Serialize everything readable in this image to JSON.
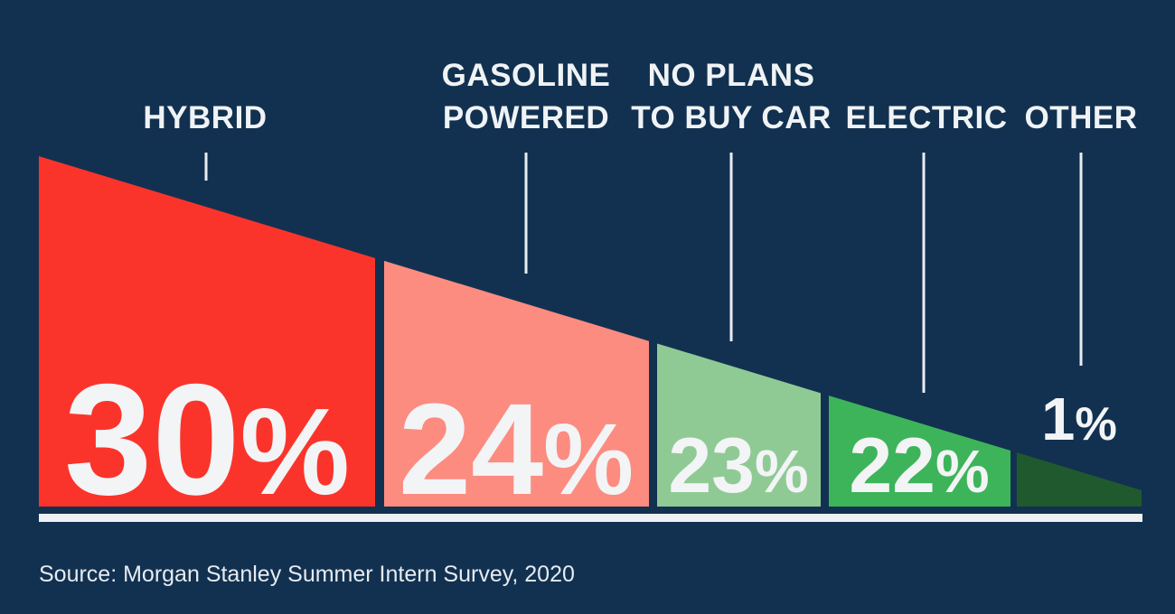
{
  "colors": {
    "background": "#123150",
    "label_text": "#f0f3f5",
    "value_text": "#f3f4f6",
    "baseline_bar": "#eef1f4",
    "leader_line": "#e9edf0",
    "source_text": "#e6ebf1"
  },
  "chart_data": {
    "type": "bar",
    "subtype": "descending-wedge-funnel",
    "unit": "%",
    "categories": [
      "HYBRID",
      "GASOLINE POWERED",
      "NO PLANS TO BUY CAR",
      "ELECTRIC",
      "OTHER"
    ],
    "values": [
      30,
      24,
      23,
      22,
      1
    ],
    "grid": false,
    "legend_position": "none",
    "source": "Source: Morgan Stanley Summer Intern Survey, 2020",
    "segments": [
      {
        "category": "HYBRID",
        "value": 30,
        "value_label": "30",
        "unit": "%",
        "color": "#fb342b",
        "label_line1": "",
        "label_line2": "HYBRID"
      },
      {
        "category": "GASOLINE POWERED",
        "value": 24,
        "value_label": "24",
        "unit": "%",
        "color": "#fc8c80",
        "label_line1": "GASOLINE",
        "label_line2": "POWERED"
      },
      {
        "category": "NO PLANS TO BUY CAR",
        "value": 23,
        "value_label": "23",
        "unit": "%",
        "color": "#8fca95",
        "label_line1": "NO PLANS",
        "label_line2": "TO BUY CAR"
      },
      {
        "category": "ELECTRIC",
        "value": 22,
        "value_label": "22",
        "unit": "%",
        "color": "#3db45a",
        "label_line1": "",
        "label_line2": "ELECTRIC"
      },
      {
        "category": "OTHER",
        "value": 1,
        "value_label": "1",
        "unit": "%",
        "color": "#20592e",
        "label_line1": "",
        "label_line2": "OTHER"
      }
    ]
  }
}
